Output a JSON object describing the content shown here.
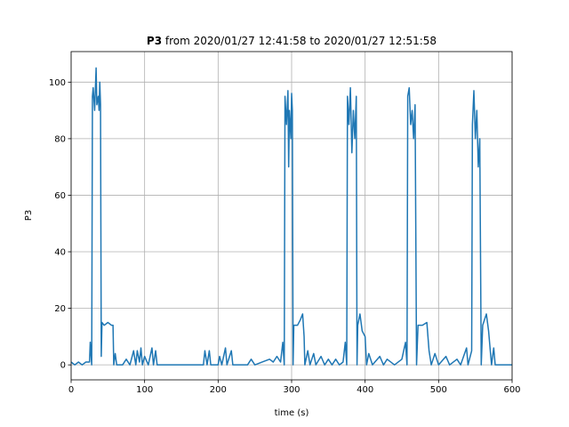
{
  "chart_data": {
    "type": "line",
    "title_parts": [
      "P3",
      "from 2020/01/27 12:41:58 to 2020/01/27 12:51:58"
    ],
    "x_label": "time (s)",
    "y_label": "P3",
    "x": [
      0,
      5,
      10,
      15,
      20,
      25,
      26,
      28,
      29,
      30,
      32,
      34,
      35,
      37,
      38,
      39,
      40,
      41,
      42,
      45,
      50,
      55,
      57,
      58,
      60,
      62,
      70,
      75,
      80,
      85,
      88,
      90,
      93,
      95,
      97,
      100,
      105,
      110,
      112,
      115,
      117,
      180,
      182,
      185,
      188,
      190,
      200,
      202,
      205,
      210,
      212,
      218,
      220,
      240,
      245,
      250,
      260,
      270,
      275,
      280,
      285,
      288,
      290,
      291,
      293,
      295,
      296,
      297,
      299,
      300,
      301,
      302,
      303,
      308,
      312,
      315,
      317,
      318,
      322,
      325,
      330,
      333,
      340,
      345,
      350,
      355,
      360,
      365,
      370,
      373,
      375,
      376,
      378,
      380,
      382,
      384,
      386,
      388,
      389,
      390,
      393,
      396,
      400,
      402,
      405,
      410,
      420,
      425,
      430,
      440,
      450,
      455,
      457,
      458,
      460,
      462,
      464,
      466,
      468,
      470,
      472,
      478,
      484,
      487,
      490,
      495,
      500,
      510,
      515,
      525,
      530,
      538,
      540,
      545,
      546,
      548,
      550,
      552,
      554,
      556,
      558,
      560,
      565,
      568,
      572,
      575,
      577,
      600
    ],
    "series": [
      {
        "name": "P3",
        "color": "#1f77b4",
        "values": [
          1,
          0,
          1,
          0,
          1,
          1,
          8,
          0,
          95,
          98,
          90,
          105,
          92,
          95,
          90,
          100,
          92,
          3,
          15,
          14,
          15,
          14,
          14,
          0,
          4,
          0,
          0,
          2,
          0,
          5,
          0,
          5,
          1,
          6,
          0,
          3,
          0,
          6,
          0,
          5,
          0,
          0,
          5,
          0,
          5,
          0,
          0,
          3,
          0,
          6,
          0,
          5,
          0,
          0,
          2,
          0,
          1,
          2,
          1,
          3,
          1,
          8,
          0,
          95,
          85,
          97,
          70,
          90,
          80,
          96,
          90,
          0,
          14,
          14,
          16,
          18,
          10,
          0,
          5,
          0,
          4,
          0,
          3,
          0,
          2,
          0,
          2,
          0,
          1,
          8,
          0,
          95,
          85,
          98,
          75,
          90,
          80,
          95,
          0,
          14,
          18,
          12,
          10,
          0,
          4,
          0,
          3,
          0,
          2,
          0,
          2,
          8,
          0,
          95,
          98,
          85,
          90,
          80,
          92,
          0,
          14,
          14,
          15,
          5,
          0,
          4,
          0,
          3,
          0,
          2,
          0,
          6,
          0,
          5,
          85,
          97,
          80,
          90,
          70,
          80,
          0,
          14,
          18,
          12,
          0,
          6,
          0,
          0
        ]
      }
    ],
    "xlim": [
      0,
      600
    ],
    "ylim": [
      -5.3,
      110.8
    ],
    "xticks": [
      0,
      100,
      200,
      300,
      400,
      500,
      600
    ],
    "yticks": [
      0,
      20,
      40,
      60,
      80,
      100
    ],
    "grid": true
  }
}
